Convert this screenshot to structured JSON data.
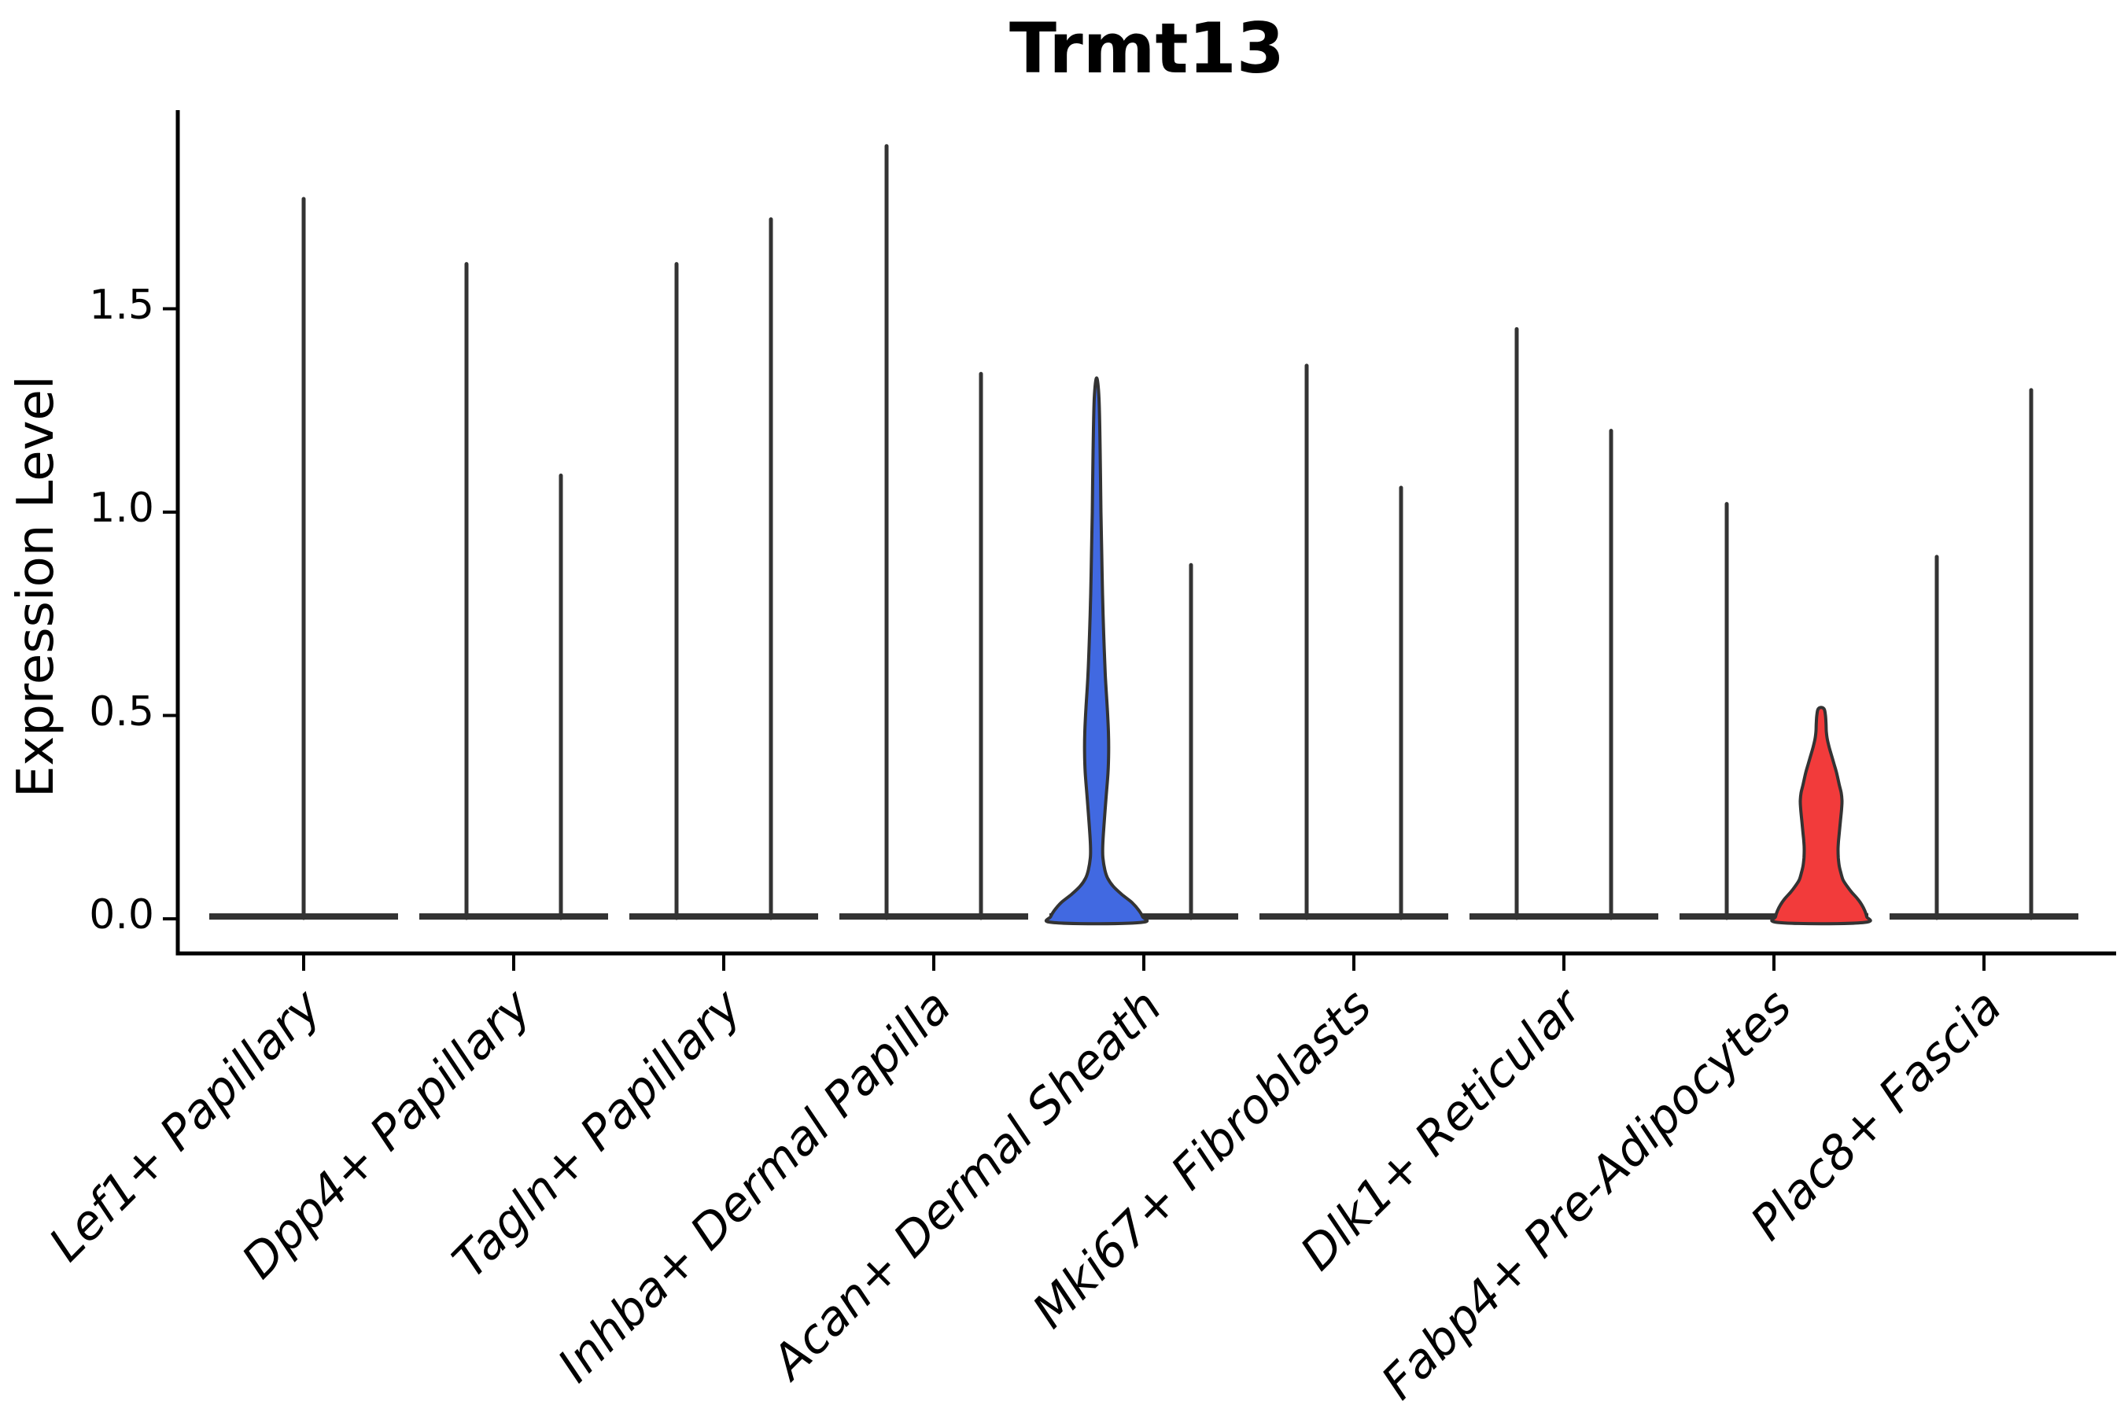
{
  "title": "Trmt13",
  "y_axis": {
    "label": "Expression Level",
    "tick_labels": [
      "0.0",
      "0.5",
      "1.0",
      "1.5"
    ]
  },
  "chart_data": {
    "type": "violin",
    "title": "Trmt13",
    "xlabel": "",
    "ylabel": "Expression Level",
    "ylim": [
      -0.09,
      2.0
    ],
    "y_ticks": [
      0,
      0.5,
      1.0,
      1.5
    ],
    "y_tick_labels": [
      "0.0",
      "0.5",
      "1.0",
      "1.5"
    ],
    "grid": false,
    "legend": "none",
    "x_tick_angle_deg": 45,
    "groups_per_category": 2,
    "categories": [
      "Lef1+ Papillary",
      "Dpp4+ Papillary",
      "Tagln+ Papillary",
      "Inhba+ Dermal Papilla",
      "Acan+ Dermal Sheath",
      "Mki67+ Fibroblasts",
      "Dlk1+ Reticular",
      "Fabp4+ Pre-Adipocytes",
      "Plac8+ Fascia"
    ],
    "colors": {
      "highlight_blue": "#4169E1",
      "highlight_red": "#F23B3B",
      "violin_outline": "#333333",
      "axis": "#000000"
    },
    "violins": [
      {
        "category": "Lef1+ Papillary",
        "slot": "center",
        "style": "spike",
        "max_expression": 1.77
      },
      {
        "category": "Dpp4+ Papillary",
        "slot": "left",
        "style": "spike",
        "max_expression": 1.61
      },
      {
        "category": "Dpp4+ Papillary",
        "slot": "right",
        "style": "spike",
        "max_expression": 1.09
      },
      {
        "category": "Tagln+ Papillary",
        "slot": "left",
        "style": "spike",
        "max_expression": 1.61
      },
      {
        "category": "Tagln+ Papillary",
        "slot": "right",
        "style": "spike",
        "max_expression": 1.72
      },
      {
        "category": "Inhba+ Dermal Papilla",
        "slot": "left",
        "style": "spike",
        "max_expression": 1.9
      },
      {
        "category": "Inhba+ Dermal Papilla",
        "slot": "right",
        "style": "spike",
        "max_expression": 1.34
      },
      {
        "category": "Acan+ Dermal Sheath",
        "slot": "left",
        "style": "filled",
        "max_expression": 1.33,
        "fill": "#4169E1",
        "width_profile": [
          [
            1.33,
            0
          ],
          [
            1.28,
            3
          ],
          [
            1.15,
            4.5
          ],
          [
            1.0,
            5.5
          ],
          [
            0.9,
            6.5
          ],
          [
            0.8,
            7.5
          ],
          [
            0.7,
            9
          ],
          [
            0.6,
            11
          ],
          [
            0.52,
            13.5
          ],
          [
            0.46,
            15
          ],
          [
            0.41,
            15.3
          ],
          [
            0.36,
            14.5
          ],
          [
            0.31,
            12.5
          ],
          [
            0.26,
            10.5
          ],
          [
            0.22,
            9
          ],
          [
            0.18,
            7.8
          ],
          [
            0.15,
            8
          ],
          [
            0.12,
            10.5
          ],
          [
            0.1,
            14
          ],
          [
            0.08,
            21
          ],
          [
            0.06,
            32
          ],
          [
            0.04,
            45
          ],
          [
            0.02,
            54
          ],
          [
            0.005,
            58.5
          ],
          [
            -0.008,
            60
          ]
        ]
      },
      {
        "category": "Acan+ Dermal Sheath",
        "slot": "right",
        "style": "spike",
        "max_expression": 0.87
      },
      {
        "category": "Mki67+ Fibroblasts",
        "slot": "left",
        "style": "spike",
        "max_expression": 1.36
      },
      {
        "category": "Mki67+ Fibroblasts",
        "slot": "right",
        "style": "spike",
        "max_expression": 1.06
      },
      {
        "category": "Dlk1+ Reticular",
        "slot": "left",
        "style": "spike",
        "max_expression": 1.45
      },
      {
        "category": "Dlk1+ Reticular",
        "slot": "right",
        "style": "spike",
        "max_expression": 1.2
      },
      {
        "category": "Fabp4+ Pre-Adipocytes",
        "slot": "left",
        "style": "spike",
        "max_expression": 1.02
      },
      {
        "category": "Fabp4+ Pre-Adipocytes",
        "slot": "right",
        "style": "filled",
        "max_expression": 0.52,
        "fill": "#F23B3B",
        "width_profile": [
          [
            0.52,
            0
          ],
          [
            0.515,
            4
          ],
          [
            0.5,
            5.5
          ],
          [
            0.48,
            6.2
          ],
          [
            0.46,
            6.6
          ],
          [
            0.44,
            8
          ],
          [
            0.42,
            10.5
          ],
          [
            0.4,
            13.5
          ],
          [
            0.38,
            16.5
          ],
          [
            0.36,
            19.5
          ],
          [
            0.33,
            23
          ],
          [
            0.31,
            25.5
          ],
          [
            0.29,
            26.5
          ],
          [
            0.27,
            26
          ],
          [
            0.24,
            24.5
          ],
          [
            0.21,
            23
          ],
          [
            0.19,
            22
          ],
          [
            0.17,
            21.5
          ],
          [
            0.15,
            21.8
          ],
          [
            0.13,
            23
          ],
          [
            0.11,
            25.5
          ],
          [
            0.095,
            28
          ],
          [
            0.08,
            33
          ],
          [
            0.065,
            39
          ],
          [
            0.05,
            46
          ],
          [
            0.035,
            51.5
          ],
          [
            0.02,
            55.5
          ],
          [
            0.005,
            58
          ],
          [
            -0.008,
            58.5
          ]
        ]
      },
      {
        "category": "Plac8+ Fascia",
        "slot": "left",
        "style": "spike",
        "max_expression": 0.89
      },
      {
        "category": "Plac8+ Fascia",
        "slot": "right",
        "style": "spike",
        "max_expression": 1.3
      }
    ]
  }
}
